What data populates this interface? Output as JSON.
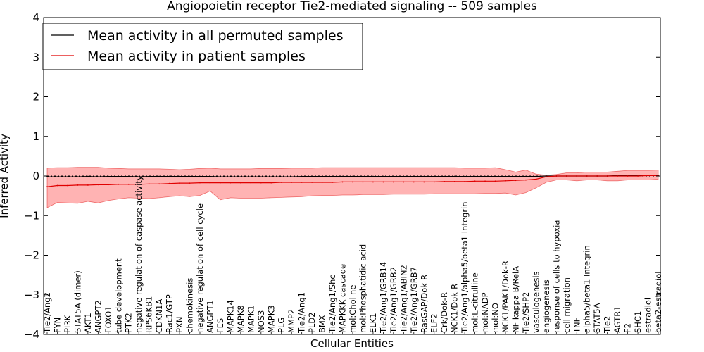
{
  "chart_data": {
    "type": "line",
    "title": "Angiopoietin receptor Tie2-mediated signaling -- 509 samples",
    "xlabel": "Cellular Entities",
    "ylabel": "Inferred Activity",
    "ylim": [
      -4,
      4
    ],
    "yticks": [
      -4,
      -3,
      -2,
      -1,
      0,
      1,
      2,
      3,
      4
    ],
    "grid": false,
    "legend_position": "top-left",
    "colors": {
      "permuted": "#000000",
      "patient": "#e00000",
      "band": "#ff9a9a"
    },
    "categories": [
      "Tie2/Ang2",
      "FYN",
      "PI3K",
      "STAT5A (dimer)",
      "AKT1",
      "ANGPT2",
      "FOXO1",
      "tube development",
      "PTK2",
      "negative regulation of caspase activity",
      "RPS6KB1",
      "CDKN1A",
      "Rac1/GTP",
      "PXN",
      "chemokinesis",
      "negative regulation of cell cycle",
      "ANGPT1",
      "FES",
      "MAPK14",
      "MAPK8",
      "MAPK1",
      "NOS3",
      "MAPK3",
      "PLG",
      "MMP2",
      "Tie2/Ang1",
      "PLD2",
      "BMX",
      "Tie2/Ang1/Shc",
      "MAPKKK cascade",
      "mol:Choline",
      "mol:Phosphatidic acid",
      "ELK1",
      "Tie2/Ang1/GRB14",
      "Tie2/Ang1/GRB2",
      "Tie2/Ang1/ABIN2",
      "Tie2/Ang1/GRB7",
      "RasGAP/Dok-R",
      "ELF2",
      "Crk/Dok-R",
      "NCK1/Dok-R",
      "Tie2/Ang1/alpha5/beta1 Integrin",
      "mol:L-citrulline",
      "mol:NADP",
      "mol:NO",
      "NCK1/PAK1/Dok-R",
      "NF kappa B/RelA",
      "Tie2/SHP2",
      "vasculogenesis",
      "angiogenesis",
      "response of cells to hypoxia",
      "cell migration",
      "TNF",
      "alpha5/beta1 Integrin",
      "STAT5A",
      "Tie2",
      "AGTR1",
      "F2",
      "SHC1",
      "estradiol",
      "beta2-estradiol"
    ],
    "series": [
      {
        "name": "Mean activity in all permuted samples",
        "color": "#000000",
        "values": [
          -0.02,
          -0.02,
          -0.02,
          -0.02,
          -0.01,
          -0.02,
          -0.01,
          -0.01,
          -0.01,
          -0.02,
          -0.01,
          -0.01,
          -0.01,
          -0.01,
          -0.01,
          -0.01,
          -0.01,
          -0.02,
          -0.02,
          -0.02,
          -0.02,
          -0.02,
          -0.02,
          -0.02,
          -0.02,
          -0.01,
          -0.01,
          -0.01,
          -0.01,
          -0.01,
          -0.01,
          -0.01,
          -0.01,
          -0.01,
          -0.01,
          -0.01,
          -0.01,
          -0.01,
          -0.01,
          -0.01,
          -0.01,
          -0.01,
          -0.01,
          -0.01,
          -0.01,
          -0.01,
          -0.01,
          -0.01,
          -0.01,
          0.0,
          0.0,
          0.0,
          0.0,
          0.0,
          0.0,
          0.0,
          0.01,
          0.01,
          0.01,
          0.01,
          0.01
        ]
      },
      {
        "name": "Mean activity in patient samples",
        "color": "#e00000",
        "values": [
          -0.27,
          -0.24,
          -0.24,
          -0.23,
          -0.23,
          -0.22,
          -0.22,
          -0.21,
          -0.21,
          -0.21,
          -0.2,
          -0.2,
          -0.19,
          -0.18,
          -0.18,
          -0.17,
          -0.17,
          -0.17,
          -0.17,
          -0.17,
          -0.17,
          -0.17,
          -0.17,
          -0.16,
          -0.16,
          -0.16,
          -0.16,
          -0.16,
          -0.16,
          -0.15,
          -0.15,
          -0.15,
          -0.15,
          -0.15,
          -0.15,
          -0.15,
          -0.15,
          -0.15,
          -0.15,
          -0.14,
          -0.14,
          -0.14,
          -0.13,
          -0.13,
          -0.13,
          -0.12,
          -0.11,
          -0.1,
          -0.08,
          -0.02,
          0.0,
          0.0,
          0.0,
          0.0,
          0.0,
          0.0,
          0.0,
          0.0,
          0.0,
          0.01,
          0.01
        ]
      }
    ],
    "band_upper": [
      0.2,
      0.21,
      0.21,
      0.22,
      0.22,
      0.22,
      0.2,
      0.19,
      0.18,
      0.18,
      0.18,
      0.18,
      0.17,
      0.16,
      0.17,
      0.19,
      0.2,
      0.18,
      0.18,
      0.18,
      0.18,
      0.19,
      0.19,
      0.19,
      0.2,
      0.2,
      0.2,
      0.21,
      0.21,
      0.21,
      0.21,
      0.21,
      0.21,
      0.21,
      0.21,
      0.21,
      0.21,
      0.21,
      0.21,
      0.21,
      0.21,
      0.2,
      0.2,
      0.2,
      0.21,
      0.16,
      0.1,
      0.15,
      0.05,
      0.02,
      0.04,
      0.08,
      0.08,
      0.1,
      0.1,
      0.1,
      0.12,
      0.14,
      0.14,
      0.14,
      0.15
    ],
    "band_lower": [
      -0.8,
      -0.67,
      -0.68,
      -0.69,
      -0.64,
      -0.68,
      -0.62,
      -0.58,
      -0.55,
      -0.56,
      -0.57,
      -0.55,
      -0.52,
      -0.5,
      -0.52,
      -0.49,
      -0.38,
      -0.6,
      -0.55,
      -0.56,
      -0.56,
      -0.56,
      -0.55,
      -0.54,
      -0.53,
      -0.52,
      -0.5,
      -0.49,
      -0.49,
      -0.48,
      -0.48,
      -0.47,
      -0.47,
      -0.47,
      -0.46,
      -0.46,
      -0.46,
      -0.46,
      -0.45,
      -0.45,
      -0.45,
      -0.45,
      -0.45,
      -0.44,
      -0.44,
      -0.43,
      -0.48,
      -0.42,
      -0.3,
      -0.16,
      -0.1,
      -0.1,
      -0.12,
      -0.1,
      -0.1,
      -0.12,
      -0.12,
      -0.1,
      -0.1,
      -0.1,
      -0.08
    ]
  }
}
